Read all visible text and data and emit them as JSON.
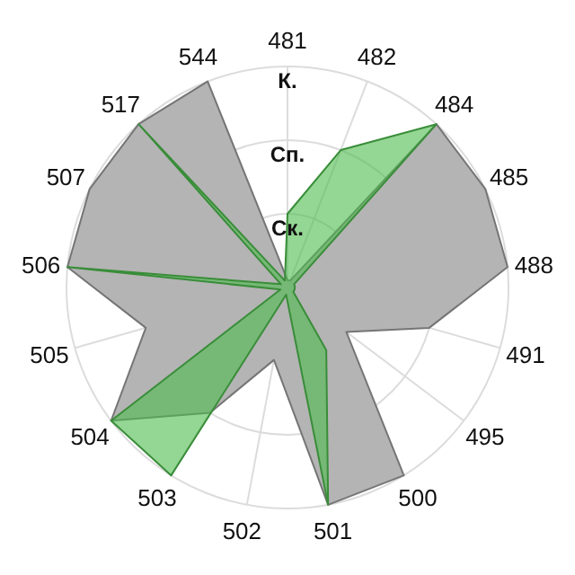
{
  "chart_data": {
    "type": "radar",
    "categories": [
      "481",
      "482",
      "484",
      "485",
      "488",
      "491",
      "495",
      "500",
      "501",
      "502",
      "503",
      "504",
      "505",
      "506",
      "507",
      "517",
      "544"
    ],
    "ylim": [
      0,
      3
    ],
    "yticks": [
      {
        "value": 1,
        "label": "Ск."
      },
      {
        "value": 2,
        "label": "Сп."
      },
      {
        "value": 3,
        "label": "К."
      }
    ],
    "grid": true,
    "series": [
      {
        "color": "#b4b4b4",
        "values": [
          0.1,
          0.1,
          3,
          3,
          3,
          2,
          1,
          3,
          3,
          1,
          2,
          3,
          2,
          3,
          3,
          3,
          3
        ]
      },
      {
        "color": "#4cbb4c",
        "values": [
          1,
          2,
          3,
          0.1,
          0.1,
          0.1,
          0.1,
          1,
          3,
          0.1,
          3,
          3,
          0.1,
          3,
          0.1,
          3,
          0.1
        ]
      }
    ]
  }
}
